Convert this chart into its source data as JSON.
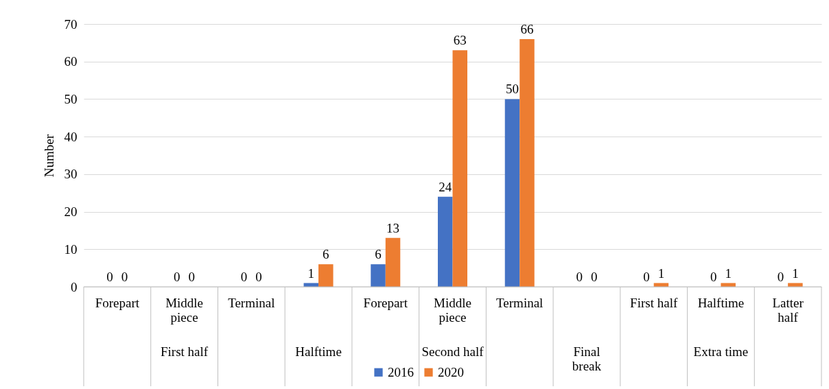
{
  "chart_data": {
    "type": "bar",
    "ylabel": "Number",
    "categories": [
      "Forepart",
      "Middle piece",
      "Terminal",
      null,
      "Forepart",
      "Middle piece",
      "Terminal",
      null,
      "First half",
      "Halftime",
      "Latter half"
    ],
    "annotations": [
      "First half",
      "Halftime",
      "Second half",
      "Final break",
      "Extra time"
    ],
    "series": [
      {
        "name": "2016",
        "color": "#4472c4",
        "values": [
          0,
          0,
          0,
          1,
          6,
          24,
          50,
          0,
          0,
          0,
          0
        ]
      },
      {
        "name": "2020",
        "color": "#ed7d31",
        "values": [
          0,
          0,
          0,
          6,
          13,
          63,
          66,
          0,
          1,
          1,
          1
        ]
      }
    ],
    "ylim": [
      0,
      70
    ],
    "yticks": [
      0,
      10,
      20,
      30,
      40,
      50,
      60,
      70
    ],
    "grid": "y",
    "legend": "bottom",
    "data_labels": true
  }
}
